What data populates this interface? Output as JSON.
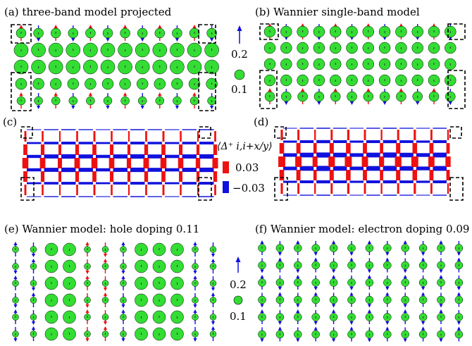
{
  "panels": {
    "a": {
      "title": "(a)    three-band model projected"
    },
    "b": {
      "title": "(b)      Wannier single-band model"
    },
    "c": {
      "label": "(c)"
    },
    "d": {
      "label": "(d)"
    },
    "e": {
      "title": "(e)  Wannier model: hole doping 0.11"
    },
    "f": {
      "title": "(f)  Wannier model: electron doping 0.09"
    }
  },
  "legend_top": {
    "arrow_value": "0.2",
    "circle_value": "0.1"
  },
  "legend_middle": {
    "label": "⟨Δ⁺ i,i+x/y⟩",
    "positive_value": "0.03",
    "negative_value": "−0.03",
    "positive_color": "#ee1111",
    "negative_color": "#1111dd"
  },
  "legend_bottom": {
    "arrow_value": "0.2",
    "circle_value": "0.1"
  },
  "colors": {
    "hole_density": "#33dd33",
    "spin_up_arrow": "#ee1111",
    "spin_down_arrow": "#1111dd",
    "bond_positive": "#ee1111",
    "bond_negative": "#1111dd",
    "dashed_box": "#000000"
  },
  "icons": {
    "arrow": "arrow-icon",
    "circle": "circle-icon"
  }
}
